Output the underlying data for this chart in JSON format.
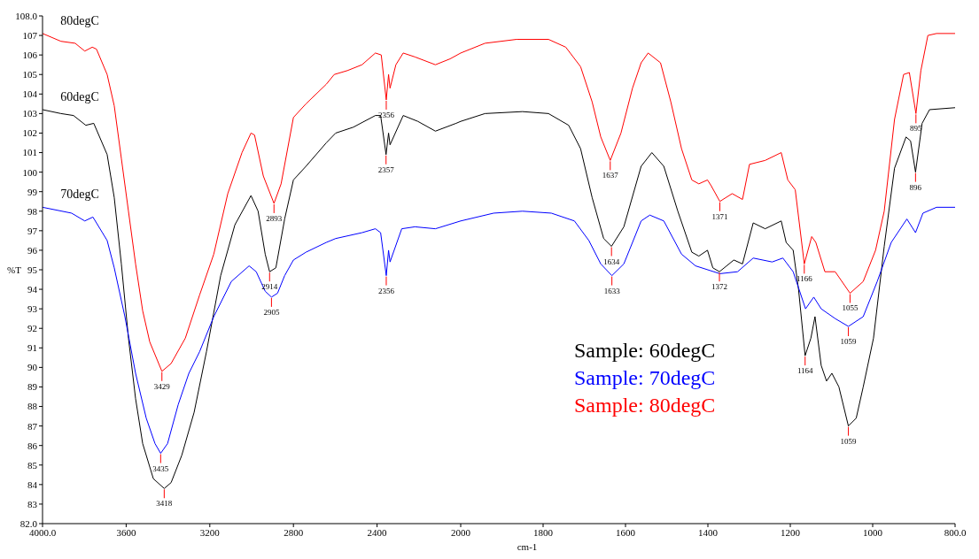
{
  "chart_data": [
    {
      "type": "line",
      "ylabel": "%T",
      "xlim": [
        4000,
        2000
      ],
      "xticks": [
        {
          "value": 4000,
          "label": "4000.0"
        },
        3600,
        3200,
        2800,
        2400
      ],
      "ylim": [
        82,
        108
      ],
      "yticks": [
        {
          "value": 82,
          "label": "82.0"
        },
        83,
        84,
        85,
        86,
        87,
        88,
        89,
        90,
        91,
        92,
        93,
        94,
        95,
        96,
        97,
        98,
        99,
        100,
        101,
        102,
        103,
        104,
        105,
        106,
        107,
        {
          "value": 108,
          "label": "108.0"
        }
      ],
      "series": [
        {
          "name": "60degC",
          "color": "#000000",
          "x": [
            4000,
            3912,
            3852,
            3793,
            3755,
            3691,
            3657,
            3623,
            3589,
            3555,
            3521,
            3470,
            3418,
            3385,
            3334,
            3275,
            3216,
            3148,
            3080,
            3003,
            2969,
            2935,
            2914,
            2884,
            2842,
            2800,
            2740,
            2643,
            2598,
            2514,
            2408,
            2383,
            2357,
            2345,
            2338,
            2275,
            2205,
            2121,
            2022,
            2000
          ],
          "values": [
            103.2,
            103.0,
            102.9,
            102.4,
            102.5,
            100.9,
            98.7,
            95.3,
            91.5,
            88.4,
            86.1,
            84.3,
            83.8,
            84.1,
            85.5,
            87.7,
            90.8,
            94.7,
            97.3,
            98.8,
            98.0,
            95.8,
            94.9,
            95.1,
            97.6,
            99.6,
            100.3,
            101.5,
            102.0,
            102.3,
            102.9,
            102.9,
            100.9,
            102.0,
            101.4,
            102.9,
            102.6,
            102.1,
            102.5,
            102.6
          ]
        },
        {
          "name": "70degC",
          "color": "#0000ff",
          "x": [
            4000,
            3861,
            3798,
            3759,
            3691,
            3657,
            3606,
            3555,
            3504,
            3462,
            3435,
            3402,
            3351,
            3300,
            3249,
            3181,
            3097,
            3012,
            2978,
            2935,
            2905,
            2876,
            2842,
            2800,
            2740,
            2643,
            2598,
            2472,
            2408,
            2383,
            2356,
            2345,
            2338,
            2282,
            2219,
            2121,
            2000
          ],
          "values": [
            98.2,
            97.9,
            97.5,
            97.7,
            96.5,
            95.1,
            92.6,
            89.7,
            87.4,
            86.1,
            85.6,
            86.1,
            88.1,
            89.7,
            90.8,
            92.6,
            94.4,
            95.2,
            94.9,
            93.9,
            93.6,
            93.8,
            94.7,
            95.5,
            95.9,
            96.4,
            96.6,
            96.9,
            97.1,
            96.9,
            94.7,
            96.0,
            95.4,
            97.1,
            97.2,
            97.1,
            97.5
          ]
        },
        {
          "name": "80degC",
          "color": "#ff0000",
          "x": [
            4000,
            3912,
            3844,
            3798,
            3762,
            3742,
            3691,
            3657,
            3623,
            3589,
            3555,
            3521,
            3487,
            3429,
            3385,
            3317,
            3283,
            3249,
            3181,
            3114,
            3046,
            3003,
            2986,
            2944,
            2893,
            2859,
            2800,
            2740,
            2643,
            2605,
            2542,
            2472,
            2408,
            2380,
            2356,
            2345,
            2338,
            2310,
            2275,
            2219,
            2121,
            2051,
            2000
          ],
          "values": [
            107.1,
            106.7,
            106.6,
            106.2,
            106.4,
            106.3,
            105.0,
            103.4,
            100.7,
            98.0,
            95.3,
            92.9,
            91.3,
            89.8,
            90.2,
            91.5,
            92.6,
            93.7,
            95.8,
            98.9,
            101.0,
            102.0,
            101.9,
            99.8,
            98.4,
            99.4,
            102.8,
            103.5,
            104.5,
            105.0,
            105.2,
            105.5,
            106.1,
            106.0,
            103.7,
            105.0,
            104.3,
            105.5,
            106.1,
            105.9,
            105.5,
            105.8,
            106.1
          ]
        }
      ],
      "annotations": [
        {
          "text": "3429",
          "x": 3429,
          "y": 89.8
        },
        {
          "text": "3435",
          "x": 3435,
          "y": 85.6
        },
        {
          "text": "3418",
          "x": 3418,
          "y": 83.8
        },
        {
          "text": "2893",
          "x": 2893,
          "y": 98.4
        },
        {
          "text": "2914",
          "x": 2914,
          "y": 94.9
        },
        {
          "text": "2905",
          "x": 2905,
          "y": 93.6
        },
        {
          "text": "2356",
          "x": 2356,
          "y": 103.7
        },
        {
          "text": "2357",
          "x": 2357,
          "y": 100.9
        },
        {
          "text": "2356",
          "x": 2356,
          "y": 94.7
        }
      ]
    },
    {
      "type": "line",
      "xlabel": "cm-1",
      "tick_labels": "x",
      "xlim": [
        2000,
        800
      ],
      "xticks": [
        2000,
        1800,
        1600,
        1400,
        1200,
        1000,
        {
          "value": 800,
          "label": "800.0"
        }
      ],
      "ylim": [
        82,
        108
      ],
      "legend": "bottom left",
      "series": [
        {
          "name": "Sample: 60degC",
          "color": "#000000",
          "x": [
            2000,
            1941,
            1850,
            1787,
            1738,
            1709,
            1681,
            1653,
            1634,
            1604,
            1562,
            1536,
            1507,
            1473,
            1439,
            1422,
            1401,
            1388,
            1372,
            1337,
            1316,
            1290,
            1261,
            1222,
            1210,
            1193,
            1180,
            1164,
            1150,
            1140,
            1125,
            1112,
            1099,
            1082,
            1059,
            1040,
            1023,
            998,
            972,
            947,
            919,
            908,
            896,
            880,
            862,
            800
          ],
          "values": [
            102.6,
            103.0,
            103.1,
            103.0,
            102.4,
            101.2,
            98.7,
            96.6,
            96.2,
            97.2,
            100.3,
            101.0,
            100.3,
            98.0,
            95.9,
            95.7,
            96.0,
            95.1,
            94.9,
            95.5,
            95.3,
            97.4,
            97.1,
            97.5,
            96.4,
            96.0,
            94.0,
            90.6,
            91.5,
            92.6,
            90.1,
            89.3,
            89.7,
            89.0,
            87.0,
            87.4,
            89.0,
            91.5,
            96.2,
            100.2,
            101.8,
            101.6,
            100.0,
            102.5,
            103.2,
            103.3
          ]
        },
        {
          "name": "Sample: 70degC",
          "color": "#0000ff",
          "x": [
            2000,
            1920,
            1850,
            1780,
            1724,
            1689,
            1660,
            1633,
            1604,
            1562,
            1541,
            1507,
            1464,
            1430,
            1371,
            1328,
            1290,
            1244,
            1218,
            1193,
            1163,
            1143,
            1125,
            1091,
            1059,
            1023,
            989,
            955,
            917,
            896,
            878,
            845,
            800
          ],
          "values": [
            97.5,
            97.9,
            98.0,
            97.9,
            97.5,
            96.5,
            95.3,
            94.7,
            95.3,
            97.5,
            97.8,
            97.5,
            95.8,
            95.2,
            94.8,
            94.9,
            95.6,
            95.4,
            95.6,
            94.9,
            93.0,
            93.6,
            93.0,
            92.5,
            92.1,
            92.6,
            94.4,
            96.4,
            97.6,
            96.9,
            97.9,
            98.2,
            98.2
          ]
        },
        {
          "name": "Sample: 80degC",
          "color": "#ff0000",
          "x": [
            2000,
            1941,
            1864,
            1787,
            1745,
            1709,
            1681,
            1660,
            1637,
            1611,
            1583,
            1562,
            1545,
            1515,
            1490,
            1464,
            1439,
            1422,
            1401,
            1392,
            1371,
            1341,
            1316,
            1299,
            1261,
            1222,
            1206,
            1188,
            1166,
            1148,
            1138,
            1116,
            1091,
            1055,
            1023,
            993,
            972,
            947,
            925,
            911,
            895,
            883,
            866,
            845,
            800
          ],
          "values": [
            106.1,
            106.6,
            106.8,
            106.8,
            106.4,
            105.4,
            103.6,
            101.8,
            100.6,
            102.0,
            104.3,
            105.6,
            106.1,
            105.6,
            103.6,
            101.2,
            99.6,
            99.4,
            99.6,
            99.3,
            98.5,
            98.9,
            98.6,
            100.4,
            100.6,
            101.0,
            99.6,
            99.1,
            95.3,
            96.7,
            96.4,
            94.9,
            94.9,
            93.8,
            94.4,
            96.0,
            98.0,
            102.7,
            105.0,
            105.1,
            103.0,
            105.2,
            107.0,
            107.1,
            107.1
          ]
        }
      ],
      "annotations": [
        {
          "text": "1637",
          "x": 1637,
          "y": 100.6
        },
        {
          "text": "1634",
          "x": 1634,
          "y": 96.2
        },
        {
          "text": "1633",
          "x": 1633,
          "y": 94.7
        },
        {
          "text": "1371",
          "x": 1371,
          "y": 98.5
        },
        {
          "text": "1372",
          "x": 1372,
          "y": 94.9
        },
        {
          "text": "1166",
          "x": 1166,
          "y": 95.3
        },
        {
          "text": "1164",
          "x": 1164,
          "y": 90.6
        },
        {
          "text": "1055",
          "x": 1055,
          "y": 93.8
        },
        {
          "text": "1059",
          "x": 1059,
          "y": 92.1
        },
        {
          "text": "1059",
          "x": 1059,
          "y": 87.0
        },
        {
          "text": "895",
          "x": 895,
          "y": 103.0
        },
        {
          "text": "896",
          "x": 896,
          "y": 100.0
        }
      ]
    }
  ]
}
